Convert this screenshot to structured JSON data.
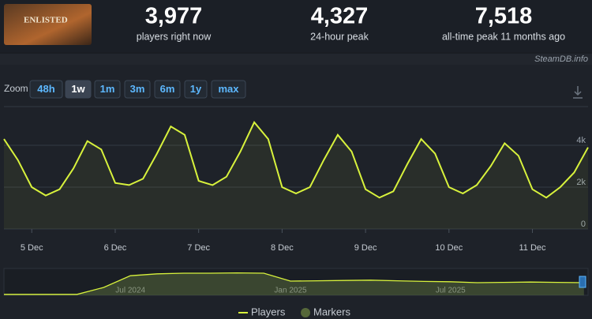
{
  "header": {
    "image_text": "ENLISTED",
    "stats": [
      {
        "value": "3,977",
        "label": "players right now"
      },
      {
        "value": "4,327",
        "label": "24-hour peak"
      },
      {
        "value": "7,518",
        "label": "all-time peak 11 months ago"
      }
    ],
    "source": "SteamDB.info"
  },
  "zoom": {
    "label": "Zoom",
    "options": [
      "48h",
      "1w",
      "1m",
      "3m",
      "6m",
      "1y",
      "max"
    ]
  },
  "chart_data": [
    {
      "type": "line",
      "categories": [
        null,
        null,
        "5 Dec",
        null,
        null,
        null,
        null,
        null,
        "6 Dec",
        null,
        null,
        null,
        null,
        null,
        "7 Dec",
        null,
        null,
        null,
        null,
        null,
        "8 Dec",
        null,
        null,
        null,
        null,
        null,
        "9 Dec",
        null,
        null,
        null,
        null,
        null,
        "10 Dec",
        null,
        null,
        null,
        null,
        null,
        "11 Dec",
        null,
        null,
        null,
        null
      ],
      "series": [
        {
          "name": "Players",
          "color": "#d8f23c",
          "values": [
            4300,
            3300,
            2000,
            1600,
            1900,
            2900,
            4200,
            3800,
            2200,
            2100,
            2400,
            3600,
            4900,
            4500,
            2300,
            2100,
            2500,
            3700,
            5100,
            4300,
            2000,
            1700,
            2000,
            3300,
            4500,
            3700,
            1900,
            1500,
            1800,
            3100,
            4300,
            3600,
            2000,
            1700,
            2100,
            3000,
            4100,
            3500,
            1900,
            1500,
            2000,
            2700,
            3900
          ]
        }
      ],
      "marker_legend": {
        "name": "Markers",
        "color": "#56683a"
      },
      "ylim": [
        0,
        5850
      ],
      "yticks": [
        0,
        {
          "value": 2000,
          "label": "2k"
        },
        {
          "value": 4000,
          "label": "4k"
        }
      ],
      "grid": true
    },
    {
      "type": "area",
      "categories": [
        null,
        null,
        null,
        null,
        "Jul 2024",
        null,
        null,
        null,
        null,
        null,
        "Jan 2025",
        null,
        null,
        null,
        null,
        null,
        "Jul 2025",
        null,
        null,
        null,
        null,
        null
      ],
      "series": [
        {
          "color": "#d8f23c",
          "values": [
            300,
            300,
            300,
            2500,
            6200,
            6800,
            7000,
            7000,
            7100,
            7000,
            4500,
            4600,
            4700,
            4800,
            4600,
            4400,
            4300,
            4000,
            4100,
            4200,
            4100,
            4000
          ]
        }
      ],
      "ylim": [
        0,
        8000
      ]
    }
  ]
}
